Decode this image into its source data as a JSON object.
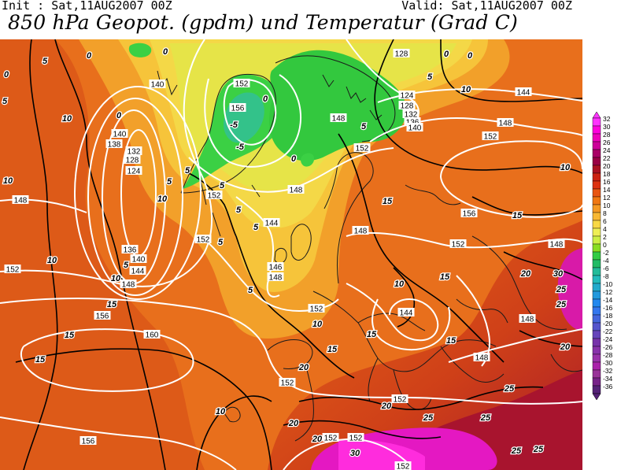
{
  "header": {
    "init": "Init : Sat,11AUG2007 00Z",
    "valid": "Valid: Sat,11AUG2007 00Z",
    "title": "850 hPa Geopot. (gpdm) und Temperatur (Grad C)"
  },
  "legend": {
    "values": [
      "32",
      "30",
      "28",
      "26",
      "24",
      "22",
      "20",
      "18",
      "16",
      "14",
      "12",
      "10",
      "8",
      "6",
      "4",
      "2",
      "0",
      "-2",
      "-4",
      "-6",
      "-8",
      "-10",
      "-12",
      "-14",
      "-16",
      "-18",
      "-20",
      "-22",
      "-24",
      "-26",
      "-28",
      "-30",
      "-32",
      "-34",
      "-36"
    ],
    "colors": [
      "#ff33ff",
      "#ff00dd",
      "#ee00bb",
      "#cc0099",
      "#aa0066",
      "#990044",
      "#aa1122",
      "#cc2211",
      "#dd3311",
      "#e85511",
      "#f07711",
      "#f59922",
      "#f8b833",
      "#f8d844",
      "#eeee55",
      "#ccee44",
      "#88dd22",
      "#33cc44",
      "#22bb66",
      "#22bb99",
      "#22bbbb",
      "#22aacc",
      "#2299dd",
      "#2288ee",
      "#3377ee",
      "#4466dd",
      "#5555cc",
      "#6644bb",
      "#7733aa",
      "#8833aa",
      "#9933aa",
      "#aa22aa",
      "#993399",
      "#772288",
      "#552277"
    ]
  },
  "map": {
    "geopotential_labels": [
      {
        "text": "128",
        "c": [
          510,
          68
        ]
      },
      {
        "text": "140",
        "c": [
          200,
          107
        ]
      },
      {
        "text": "140",
        "c": [
          152,
          170
        ]
      },
      {
        "text": "138",
        "c": [
          145,
          183
        ]
      },
      {
        "text": "132",
        "c": [
          170,
          192
        ]
      },
      {
        "text": "128",
        "c": [
          168,
          203
        ]
      },
      {
        "text": "124",
        "c": [
          170,
          217
        ]
      },
      {
        "text": "152",
        "c": [
          307,
          106
        ]
      },
      {
        "text": "156",
        "c": [
          302,
          137
        ]
      },
      {
        "text": "148",
        "c": [
          430,
          150
        ]
      },
      {
        "text": "124",
        "c": [
          517,
          121
        ]
      },
      {
        "text": "128",
        "c": [
          517,
          134
        ]
      },
      {
        "text": "132",
        "c": [
          522,
          145
        ]
      },
      {
        "text": "136",
        "c": [
          524,
          155
        ]
      },
      {
        "text": "140",
        "c": [
          527,
          162
        ]
      },
      {
        "text": "144",
        "c": [
          665,
          117
        ]
      },
      {
        "text": "148",
        "c": [
          642,
          156
        ]
      },
      {
        "text": "152",
        "c": [
          623,
          173
        ]
      },
      {
        "text": "152",
        "c": [
          460,
          188
        ]
      },
      {
        "text": "148",
        "c": [
          376,
          241
        ]
      },
      {
        "text": "152",
        "c": [
          272,
          248
        ]
      },
      {
        "text": "156",
        "c": [
          596,
          271
        ]
      },
      {
        "text": "148",
        "c": [
          26,
          254
        ]
      },
      {
        "text": "144",
        "c": [
          345,
          283
        ]
      },
      {
        "text": "148",
        "c": [
          458,
          293
        ]
      },
      {
        "text": "152",
        "c": [
          258,
          304
        ]
      },
      {
        "text": "152",
        "c": [
          582,
          310
        ]
      },
      {
        "text": "148",
        "c": [
          707,
          310
        ]
      },
      {
        "text": "136",
        "c": [
          165,
          317
        ]
      },
      {
        "text": "140",
        "c": [
          176,
          329
        ]
      },
      {
        "text": "144",
        "c": [
          175,
          344
        ]
      },
      {
        "text": "148",
        "c": [
          163,
          361
        ]
      },
      {
        "text": "146",
        "c": [
          350,
          339
        ]
      },
      {
        "text": "148",
        "c": [
          350,
          352
        ]
      },
      {
        "text": "152",
        "c": [
          16,
          342
        ]
      },
      {
        "text": "152",
        "c": [
          402,
          392
        ]
      },
      {
        "text": "144",
        "c": [
          516,
          397
        ]
      },
      {
        "text": "148",
        "c": [
          670,
          405
        ]
      },
      {
        "text": "156",
        "c": [
          130,
          401
        ]
      },
      {
        "text": "160",
        "c": [
          193,
          425
        ]
      },
      {
        "text": "148",
        "c": [
          612,
          454
        ]
      },
      {
        "text": "152",
        "c": [
          365,
          486
        ]
      },
      {
        "text": "152",
        "c": [
          508,
          507
        ]
      },
      {
        "text": "152",
        "c": [
          420,
          556
        ]
      },
      {
        "text": "152",
        "c": [
          452,
          556
        ]
      },
      {
        "text": "156",
        "c": [
          112,
          560
        ]
      },
      {
        "text": "152",
        "c": [
          512,
          592
        ]
      }
    ],
    "temperature_labels": [
      {
        "text": "5",
        "c": [
          57,
          77
        ]
      },
      {
        "text": "0",
        "c": [
          113,
          70
        ]
      },
      {
        "text": "0",
        "c": [
          210,
          65
        ]
      },
      {
        "text": "0",
        "c": [
          567,
          68
        ]
      },
      {
        "text": "0",
        "c": [
          597,
          70
        ]
      },
      {
        "text": "0",
        "c": [
          8,
          94
        ]
      },
      {
        "text": "5",
        "c": [
          546,
          97
        ]
      },
      {
        "text": "10",
        "c": [
          592,
          113
        ]
      },
      {
        "text": "5",
        "c": [
          6,
          128
        ]
      },
      {
        "text": "0",
        "c": [
          151,
          146
        ]
      },
      {
        "text": "10",
        "c": [
          85,
          150
        ]
      },
      {
        "text": "-5",
        "c": [
          297,
          158
        ]
      },
      {
        "text": "0",
        "c": [
          337,
          125
        ]
      },
      {
        "text": "-5",
        "c": [
          305,
          186
        ]
      },
      {
        "text": "5",
        "c": [
          462,
          160
        ]
      },
      {
        "text": "0",
        "c": [
          373,
          201
        ]
      },
      {
        "text": "5",
        "c": [
          238,
          216
        ]
      },
      {
        "text": "10",
        "c": [
          718,
          212
        ]
      },
      {
        "text": "5",
        "c": [
          215,
          230
        ]
      },
      {
        "text": "5",
        "c": [
          282,
          235
        ]
      },
      {
        "text": "10",
        "c": [
          10,
          229
        ]
      },
      {
        "text": "5",
        "c": [
          303,
          266
        ]
      },
      {
        "text": "5",
        "c": [
          325,
          288
        ]
      },
      {
        "text": "10",
        "c": [
          206,
          252
        ]
      },
      {
        "text": "15",
        "c": [
          492,
          255
        ]
      },
      {
        "text": "15",
        "c": [
          657,
          273
        ]
      },
      {
        "text": "5",
        "c": [
          280,
          307
        ]
      },
      {
        "text": "10",
        "c": [
          66,
          330
        ]
      },
      {
        "text": "5",
        "c": [
          160,
          336
        ]
      },
      {
        "text": "10",
        "c": [
          147,
          353
        ]
      },
      {
        "text": "15",
        "c": [
          565,
          351
        ]
      },
      {
        "text": "20",
        "c": [
          668,
          347
        ]
      },
      {
        "text": "30",
        "c": [
          709,
          347
        ]
      },
      {
        "text": "10",
        "c": [
          507,
          360
        ]
      },
      {
        "text": "25",
        "c": [
          713,
          367
        ]
      },
      {
        "text": "5",
        "c": [
          318,
          368
        ]
      },
      {
        "text": "15",
        "c": [
          142,
          386
        ]
      },
      {
        "text": "25",
        "c": [
          713,
          386
        ]
      },
      {
        "text": "10",
        "c": [
          403,
          411
        ]
      },
      {
        "text": "15",
        "c": [
          472,
          424
        ]
      },
      {
        "text": "15",
        "c": [
          573,
          432
        ]
      },
      {
        "text": "15",
        "c": [
          88,
          425
        ]
      },
      {
        "text": "20",
        "c": [
          718,
          440
        ]
      },
      {
        "text": "15",
        "c": [
          422,
          443
        ]
      },
      {
        "text": "15",
        "c": [
          51,
          456
        ]
      },
      {
        "text": "20",
        "c": [
          386,
          466
        ]
      },
      {
        "text": "25",
        "c": [
          647,
          493
        ]
      },
      {
        "text": "20",
        "c": [
          491,
          515
        ]
      },
      {
        "text": "10",
        "c": [
          280,
          522
        ]
      },
      {
        "text": "20",
        "c": [
          373,
          537
        ]
      },
      {
        "text": "25",
        "c": [
          544,
          530
        ]
      },
      {
        "text": "25",
        "c": [
          617,
          530
        ]
      },
      {
        "text": "30",
        "c": [
          451,
          575
        ]
      },
      {
        "text": "25",
        "c": [
          656,
          572
        ]
      },
      {
        "text": "25",
        "c": [
          684,
          570
        ]
      },
      {
        "text": "20",
        "c": [
          403,
          557
        ]
      }
    ]
  }
}
